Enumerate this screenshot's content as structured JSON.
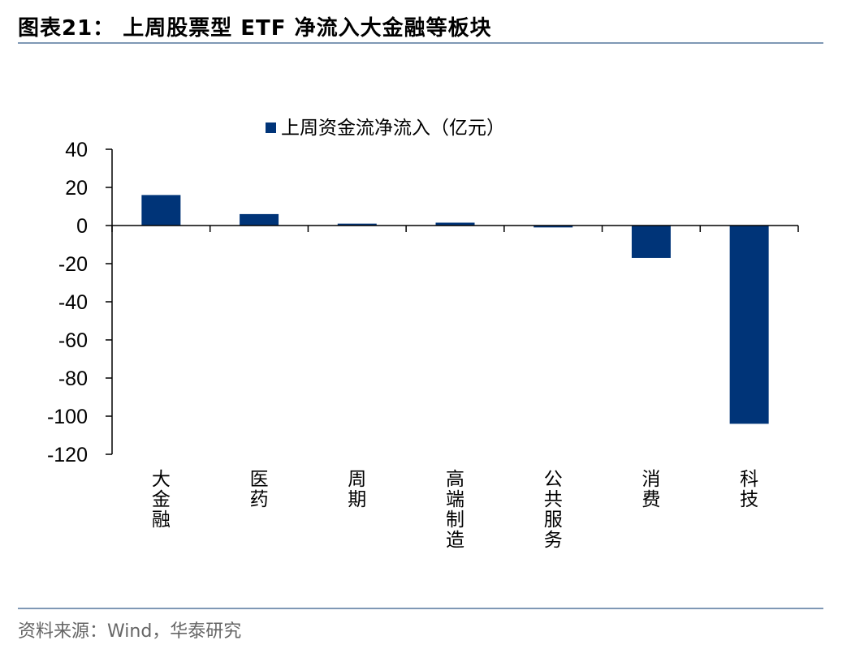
{
  "header": {
    "title": "图表21：  上周股票型 ETF 净流入大金融等板块"
  },
  "footer": {
    "source": "资料来源：Wind，华泰研究"
  },
  "colors": {
    "bar": "#003478",
    "axis": "#000000",
    "rule": "#7f98b5"
  },
  "chart_data": {
    "type": "bar",
    "title": "",
    "categories": [
      "大金融",
      "医药",
      "周期",
      "高端制造",
      "公共服务",
      "消费",
      "科技"
    ],
    "series": [
      {
        "name": "上周资金流净流入（亿元）",
        "values": [
          16,
          6,
          1,
          1.5,
          -1,
          -17,
          -104
        ]
      }
    ],
    "ylim": [
      -120,
      40
    ],
    "yticks": [
      40,
      20,
      0,
      -20,
      -40,
      -60,
      -80,
      -100,
      -120
    ],
    "xlabel": "",
    "ylabel": "",
    "legend": "top-center",
    "grid": false
  }
}
